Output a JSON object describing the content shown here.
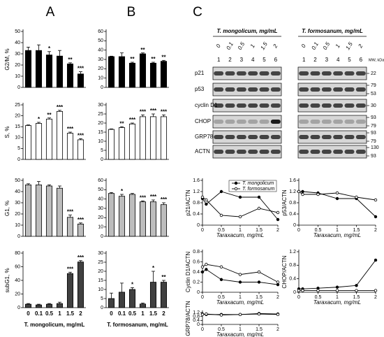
{
  "figure": {
    "panels": [
      "A",
      "B",
      "C"
    ],
    "blot": {
      "groups": [
        "T. mongolicum, mg/mL",
        "T. formosanum, mg/mL"
      ],
      "doses": [
        "0",
        "0.1",
        "0.5",
        "1",
        "1.5",
        "2"
      ],
      "lanes": [
        "1",
        "2",
        "3",
        "4",
        "5",
        "6"
      ],
      "mw_title": "MW, kDa",
      "rows": [
        {
          "label": "p21",
          "mw": [
            "22"
          ]
        },
        {
          "label": "p53",
          "mw": [
            "79",
            "53"
          ]
        },
        {
          "label": "cyclin D1",
          "mw": [
            "30"
          ]
        },
        {
          "label": "CHOP",
          "mw": [
            "93",
            "79"
          ]
        },
        {
          "label": "GRP78",
          "mw": [
            "93",
            "79"
          ]
        },
        {
          "label": "ACTN",
          "mw": [
            "130",
            "93"
          ]
        }
      ]
    }
  },
  "chart_data": [
    {
      "type": "bar",
      "ylabel": "G2/M, %",
      "color": "#000000",
      "values": [
        33,
        33,
        29,
        28,
        21,
        12
      ],
      "errors": [
        3,
        5,
        3,
        5,
        1,
        2
      ],
      "annotations": [
        null,
        null,
        "*",
        null,
        "**",
        "***"
      ],
      "ylim": [
        0,
        50
      ],
      "yticks": [
        0,
        10,
        20,
        30,
        40,
        50
      ]
    },
    {
      "type": "bar",
      "ylabel": "S, %",
      "color": "#ffffff",
      "values": [
        15.5,
        16.5,
        18.5,
        22,
        12,
        9
      ],
      "errors": [
        0.3,
        0.5,
        0.5,
        0.5,
        0.5,
        0.5
      ],
      "annotations": [
        null,
        "*",
        "**",
        "***",
        "***",
        "***"
      ],
      "ylim": [
        0,
        25
      ],
      "yticks": [
        0,
        5,
        10,
        15,
        20,
        25
      ]
    },
    {
      "type": "bar",
      "ylabel": "G1, %",
      "color": "#bdbdbd",
      "values": [
        46,
        46,
        45,
        43,
        17,
        11
      ],
      "errors": [
        1,
        3,
        1,
        2,
        2,
        1
      ],
      "annotations": [
        null,
        null,
        null,
        null,
        "***",
        "***"
      ],
      "ylim": [
        0,
        50
      ],
      "yticks": [
        0,
        10,
        20,
        30,
        40,
        50
      ]
    },
    {
      "type": "bar",
      "ylabel": "subG1, %",
      "color": "#404040",
      "values": [
        5,
        4,
        5,
        6,
        50,
        67
      ],
      "errors": [
        1,
        1,
        1,
        2,
        2,
        2
      ],
      "annotations": [
        null,
        null,
        null,
        null,
        "***",
        "***"
      ],
      "ylim": [
        0,
        80
      ],
      "yticks": [
        0,
        20,
        40,
        60,
        80
      ],
      "categories": [
        "0",
        "0.1",
        "0.5",
        "1",
        "1.5",
        "2"
      ],
      "xlabel": "T. mongolicum, mg/mL"
    },
    {
      "type": "bar",
      "ylabel": null,
      "color": "#000000",
      "values": [
        33,
        33,
        26,
        36,
        26,
        28
      ],
      "errors": [
        0.5,
        4,
        1,
        1,
        1,
        1
      ],
      "annotations": [
        null,
        null,
        "**",
        "**",
        "**",
        "**"
      ],
      "ylim": [
        0,
        60
      ],
      "yticks": [
        0,
        10,
        20,
        30,
        40,
        50,
        60
      ]
    },
    {
      "type": "bar",
      "ylabel": null,
      "color": "#ffffff",
      "values": [
        16.5,
        17.5,
        19.5,
        23.5,
        23.5,
        23.5
      ],
      "errors": [
        0.3,
        0.5,
        0.5,
        1,
        1.5,
        1
      ],
      "annotations": [
        null,
        "**",
        "***",
        "***",
        "***",
        "***"
      ],
      "ylim": [
        0,
        30
      ],
      "yticks": [
        0,
        5,
        10,
        15,
        20,
        25,
        30
      ]
    },
    {
      "type": "bar",
      "ylabel": null,
      "color": "#bdbdbd",
      "values": [
        46,
        43,
        45,
        37,
        37,
        34
      ],
      "errors": [
        1,
        2,
        1,
        1,
        2,
        2
      ],
      "annotations": [
        null,
        "*",
        null,
        "***",
        "***",
        "***"
      ],
      "ylim": [
        0,
        60
      ],
      "yticks": [
        0,
        10,
        20,
        30,
        40,
        50,
        60
      ]
    },
    {
      "type": "bar",
      "ylabel": null,
      "color": "#404040",
      "values": [
        5,
        8.5,
        10,
        2,
        14,
        14
      ],
      "errors": [
        3,
        5,
        1,
        0.5,
        6,
        1
      ],
      "annotations": [
        null,
        null,
        "*",
        null,
        "*",
        "**"
      ],
      "ylim": [
        0,
        30
      ],
      "yticks": [
        0,
        5,
        10,
        15,
        20,
        25,
        30
      ],
      "categories": [
        "0",
        "0.1",
        "0.5",
        "1",
        "1.5",
        "2"
      ],
      "xlabel": "T. formosanum, mg/mL"
    },
    {
      "type": "line",
      "ylabel": "p21/ACTN",
      "xlabel": "Taraxacum, mg/mL",
      "x": [
        0,
        0.1,
        0.5,
        1,
        1.5,
        2
      ],
      "xlim": [
        0,
        2
      ],
      "xticks": [
        0,
        0.5,
        1,
        1.5,
        2
      ],
      "ylim": [
        0,
        1.6
      ],
      "yticks": [
        0,
        0.4,
        0.8,
        1.2,
        1.6
      ],
      "series": [
        {
          "name": "T. mongolicum",
          "color": "#000000",
          "marker": "filled",
          "values": [
            0.95,
            0.75,
            1.2,
            1.0,
            1.0,
            0.2
          ]
        },
        {
          "name": "T. formosanum",
          "color": "#000000",
          "marker": "open",
          "values": [
            1.0,
            0.9,
            0.35,
            0.3,
            0.6,
            0.45
          ]
        }
      ]
    },
    {
      "type": "line",
      "ylabel": "p53/ACTN",
      "xlabel": "Taraxacum, mg/mL",
      "x": [
        0,
        0.1,
        0.5,
        1,
        1.5,
        2
      ],
      "xlim": [
        0,
        2
      ],
      "xticks": [
        0,
        0.5,
        1,
        1.5,
        2
      ],
      "ylim": [
        0,
        1.6
      ],
      "yticks": [
        0,
        0.4,
        0.8,
        1.2,
        1.6
      ],
      "series": [
        {
          "color": "#000000",
          "marker": "filled",
          "values": [
            1.2,
            1.2,
            1.15,
            0.95,
            0.95,
            0.3
          ]
        },
        {
          "color": "#000000",
          "marker": "open",
          "values": [
            1.2,
            1.1,
            1.1,
            1.15,
            1.0,
            0.9
          ]
        }
      ]
    },
    {
      "type": "line",
      "ylabel": "Cyclin D1/ACTN",
      "xlabel": "Taraxacum, mg/mL",
      "x": [
        0,
        0.1,
        0.5,
        1,
        1.5,
        2
      ],
      "xlim": [
        0,
        2
      ],
      "xticks": [
        0,
        0.5,
        1,
        1.5,
        2
      ],
      "ylim": [
        0,
        0.8
      ],
      "yticks": [
        0,
        0.2,
        0.4,
        0.6,
        0.8
      ],
      "series": [
        {
          "color": "#000000",
          "marker": "filled",
          "values": [
            0.4,
            0.45,
            0.25,
            0.2,
            0.2,
            0.15
          ]
        },
        {
          "color": "#000000",
          "marker": "open",
          "values": [
            0.5,
            0.55,
            0.5,
            0.35,
            0.4,
            0.2
          ]
        }
      ]
    },
    {
      "type": "line",
      "ylabel": "CHOP/ACTN",
      "xlabel": "Taraxacum, mg/mL",
      "x": [
        0,
        0.1,
        0.5,
        1,
        1.5,
        2
      ],
      "xlim": [
        0,
        2
      ],
      "xticks": [
        0,
        0.5,
        1,
        1.5,
        2
      ],
      "ylim": [
        0,
        1.2
      ],
      "yticks": [
        0,
        0.4,
        0.8,
        1.2
      ],
      "series": [
        {
          "color": "#000000",
          "marker": "filled",
          "values": [
            0.1,
            0.1,
            0.12,
            0.15,
            0.2,
            0.95
          ]
        },
        {
          "color": "#000000",
          "marker": "open",
          "values": [
            0.05,
            0.05,
            0.05,
            0.05,
            0.05,
            0.05
          ]
        }
      ]
    },
    {
      "type": "line",
      "ylabel": "GRP78/ACTN",
      "xlabel": "Taraxacum, mg/mL",
      "x": [
        0,
        0.1,
        0.5,
        1,
        1.5,
        2
      ],
      "xlim": [
        0,
        2
      ],
      "xticks": [
        0,
        0.5,
        1,
        1.5,
        2
      ],
      "ylim": [
        0,
        1.2
      ],
      "yticks": [
        0,
        0.4,
        0.8,
        1.2
      ],
      "series": [
        {
          "color": "#000000",
          "marker": "filled",
          "values": [
            1.05,
            1.0,
            1.0,
            1.0,
            1.1,
            1.05
          ]
        },
        {
          "color": "#000000",
          "marker": "open",
          "values": [
            1.0,
            1.05,
            0.95,
            1.0,
            1.05,
            1.0
          ]
        }
      ]
    }
  ]
}
